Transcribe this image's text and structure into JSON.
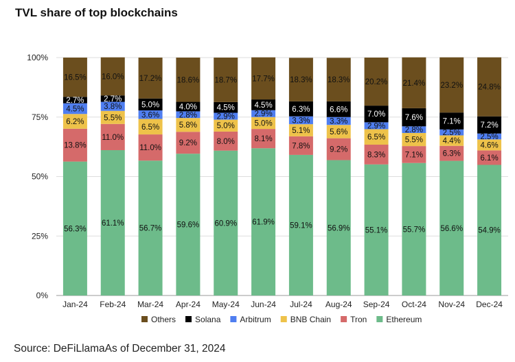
{
  "title": "TVL share of top blockchains",
  "source": "Source: DeFiLlamaAs of December 31, 2024",
  "chart_data": {
    "type": "bar",
    "stacked": true,
    "title": "TVL share of top blockchains",
    "categories": [
      "Jan-24",
      "Feb-24",
      "Mar-24",
      "Apr-24",
      "May-24",
      "Jun-24",
      "Jul-24",
      "Aug-24",
      "Sep-24",
      "Oct-24",
      "Nov-24",
      "Dec-24"
    ],
    "y_ticks": [
      "0%",
      "25%",
      "50%",
      "75%",
      "100%"
    ],
    "ylim": [
      0,
      100
    ],
    "legend_position": "bottom",
    "series": [
      {
        "name": "Ethereum",
        "color": "#6dbb8a",
        "values": [
          56.3,
          61.1,
          56.7,
          59.6,
          60.9,
          61.9,
          59.1,
          56.9,
          55.1,
          55.7,
          56.6,
          54.9
        ],
        "labels": [
          "56.3%",
          "61.1%",
          "56.7%",
          "59.6%",
          "60.9%",
          "61.9%",
          "59.1%",
          "56.9%",
          "55.1%",
          "55.7%",
          "56.6%",
          "54.9%"
        ]
      },
      {
        "name": "Tron",
        "color": "#d56a6a",
        "values": [
          13.8,
          11.0,
          11.0,
          9.2,
          8.0,
          8.1,
          7.8,
          9.2,
          8.3,
          7.1,
          6.3,
          6.1
        ],
        "labels": [
          "13.8%",
          "11.0%",
          "11.0%",
          "9.2%",
          "8.0%",
          "8.1%",
          "7.8%",
          "9.2%",
          "8.3%",
          "7.1%",
          "6.3%",
          "6.1%"
        ]
      },
      {
        "name": "BNB Chain",
        "color": "#eec24a",
        "values": [
          6.2,
          5.5,
          6.5,
          5.8,
          5.0,
          5.0,
          5.1,
          5.6,
          6.5,
          5.5,
          4.4,
          4.6
        ],
        "labels": [
          "6.2%",
          "5.5%",
          "6.5%",
          "5.8%",
          "5.0%",
          "5.0%",
          "5.1%",
          "5.6%",
          "6.5%",
          "5.5%",
          "4.4%",
          "4.6%"
        ]
      },
      {
        "name": "Arbitrum",
        "color": "#4f7ef0",
        "values": [
          4.5,
          3.8,
          3.6,
          2.8,
          2.9,
          2.9,
          3.3,
          3.3,
          2.9,
          2.8,
          2.5,
          2.5
        ],
        "labels": [
          "4.5%",
          "3.8%",
          "3.6%",
          "2.8%",
          "2.9%",
          "2.9%",
          "3.3%",
          "3.3%",
          "2.9%",
          "2.8%",
          "2.5%",
          "2.5%"
        ]
      },
      {
        "name": "Solana",
        "color": "#000000",
        "values": [
          2.7,
          2.7,
          5.0,
          4.0,
          4.5,
          4.5,
          6.3,
          6.6,
          7.0,
          7.6,
          7.1,
          7.2
        ],
        "labels": [
          "2.7%",
          "2.7%",
          "5.0%",
          "4.0%",
          "4.5%",
          "4.5%",
          "6.3%",
          "6.6%",
          "7.0%",
          "7.6%",
          "7.1%",
          "7.2%"
        ]
      },
      {
        "name": "Others",
        "color": "#6b4e1e",
        "values": [
          16.5,
          16.0,
          17.2,
          18.6,
          18.7,
          17.7,
          18.3,
          18.3,
          20.2,
          21.4,
          23.2,
          24.8
        ],
        "labels": [
          "16.5%",
          "16.0%",
          "17.2%",
          "18.6%",
          "18.7%",
          "17.7%",
          "18.3%",
          "18.3%",
          "20.2%",
          "21.4%",
          "23.2%",
          "24.8%"
        ]
      }
    ],
    "legend_order": [
      "Others",
      "Solana",
      "Arbitrum",
      "BNB Chain",
      "Tron",
      "Ethereum"
    ]
  }
}
